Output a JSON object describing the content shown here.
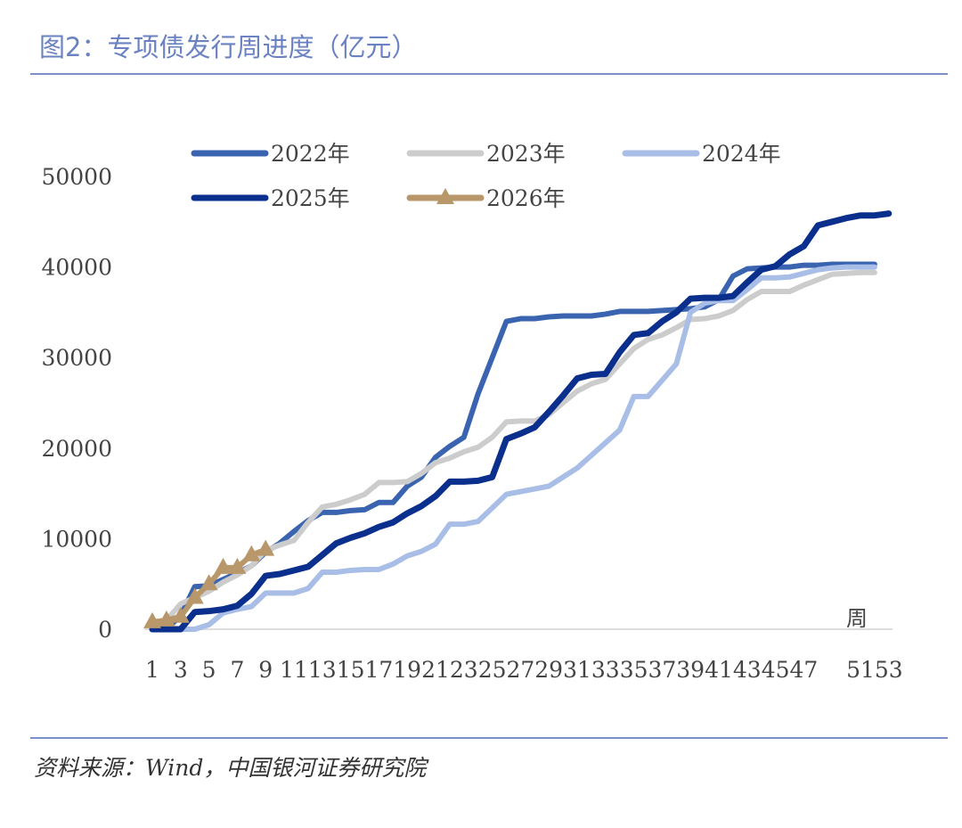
{
  "title": "图2：专项债发行周进度（亿元）",
  "source": "资料来源：Wind，中国银河证券研究院",
  "chart_data": {
    "type": "line",
    "title": "图2：专项债发行周进度（亿元）",
    "xlabel": "周",
    "ylabel": "",
    "ylim": [
      0,
      50000
    ],
    "yticks": [
      0,
      10000,
      20000,
      30000,
      40000,
      50000
    ],
    "xlim": [
      1,
      53
    ],
    "xtick_labels": [
      "1",
      "3",
      "5",
      "7",
      "9",
      "11",
      "13",
      "15",
      "17",
      "19",
      "21",
      "23",
      "25",
      "27",
      "29",
      "31",
      "33",
      "35",
      "37",
      "39",
      "41",
      "43",
      "45",
      "47",
      "51",
      "53"
    ],
    "grid": false,
    "legend_placement": "top",
    "series": [
      {
        "name": "2022年",
        "color": "#3a64b0",
        "marker": "none",
        "values": [
          0,
          0,
          1500,
          4700,
          4800,
          5500,
          6200,
          7000,
          8500,
          9500,
          10800,
          12000,
          12900,
          12900,
          13100,
          13200,
          14000,
          14000,
          15800,
          16800,
          19000,
          20200,
          21200,
          26000,
          30000,
          34000,
          34300,
          34300,
          34500,
          34600,
          34600,
          34600,
          34800,
          35100,
          35100,
          35100,
          35200,
          35300,
          35400,
          35600,
          36400,
          39000,
          39800,
          39900,
          40000,
          40000,
          40200,
          40200,
          40300,
          40300,
          40300,
          40300
        ]
      },
      {
        "name": "2023年",
        "color": "#cccccc",
        "marker": "none",
        "values": [
          0,
          1000,
          2800,
          3500,
          4200,
          5200,
          6000,
          7000,
          8700,
          9300,
          9800,
          11800,
          13500,
          13800,
          14300,
          14900,
          16200,
          16200,
          16300,
          17200,
          18400,
          18900,
          19600,
          20100,
          21200,
          22900,
          23000,
          23000,
          23700,
          25000,
          26300,
          27100,
          27600,
          29300,
          31000,
          32000,
          32500,
          33300,
          34200,
          34300,
          34600,
          35200,
          36400,
          37300,
          37300,
          37300,
          38000,
          38600,
          39200,
          39300,
          39400,
          39400
        ]
      },
      {
        "name": "2024年",
        "color": "#a9bee6",
        "marker": "none",
        "values": [
          0,
          0,
          0,
          0,
          500,
          1800,
          2200,
          2500,
          4000,
          4000,
          4000,
          4500,
          6300,
          6300,
          6500,
          6600,
          6600,
          7200,
          8100,
          8600,
          9400,
          11600,
          11600,
          11900,
          13400,
          14900,
          15200,
          15500,
          15800,
          16800,
          17800,
          19200,
          20600,
          22000,
          25700,
          25700,
          27500,
          29300,
          35000,
          36000,
          36300,
          36300,
          37500,
          38800,
          38800,
          38900,
          39300,
          39700,
          39900,
          40000,
          40000,
          40000
        ]
      },
      {
        "name": "2025年",
        "color": "#0a2f8c",
        "marker": "none",
        "values": [
          0,
          0,
          0,
          1900,
          2000,
          2200,
          2600,
          3900,
          5900,
          6100,
          6500,
          6900,
          8200,
          9500,
          10100,
          10600,
          11300,
          11800,
          12800,
          13600,
          14700,
          16300,
          16300,
          16400,
          16800,
          21000,
          21600,
          22300,
          24000,
          25800,
          27700,
          28100,
          28200,
          30600,
          32500,
          32700,
          34000,
          35000,
          36500,
          36600,
          36600,
          36800,
          38300,
          39700,
          40100,
          41400,
          42300,
          44600,
          45000,
          45400,
          45700,
          45700,
          45900
        ]
      },
      {
        "name": "2026年",
        "color": "#b8976a",
        "marker": "triangle",
        "values": [
          800,
          1000,
          1400,
          3500,
          5000,
          6800,
          6800,
          8200,
          8800
        ]
      }
    ]
  }
}
